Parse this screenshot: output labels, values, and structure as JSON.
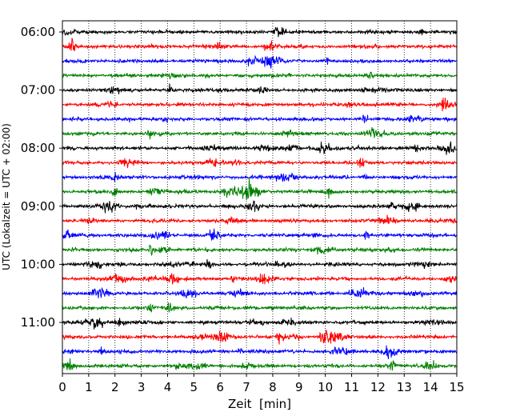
{
  "chart_data": {
    "type": "line",
    "subtype": "helicorder",
    "title": "",
    "xlabel": "Zeit  [min]",
    "ylabel": "UTC (Lokalzeit = UTC + 02:00)",
    "xlim": [
      0,
      15
    ],
    "x_ticks": [
      "0",
      "1",
      "2",
      "3",
      "4",
      "5",
      "6",
      "7",
      "8",
      "9",
      "10",
      "11",
      "12",
      "13",
      "14",
      "15"
    ],
    "y_ticks": [
      "06:00",
      "07:00",
      "08:00",
      "09:00",
      "10:00",
      "11:00"
    ],
    "row_interval_min": 15,
    "start_time": "06:00",
    "rows": 24,
    "grid": "vertical dotted at each minute",
    "series": [
      {
        "color": "#000000"
      },
      {
        "color": "#ff0000"
      },
      {
        "color": "#0000ff"
      },
      {
        "color": "#008000"
      }
    ]
  }
}
